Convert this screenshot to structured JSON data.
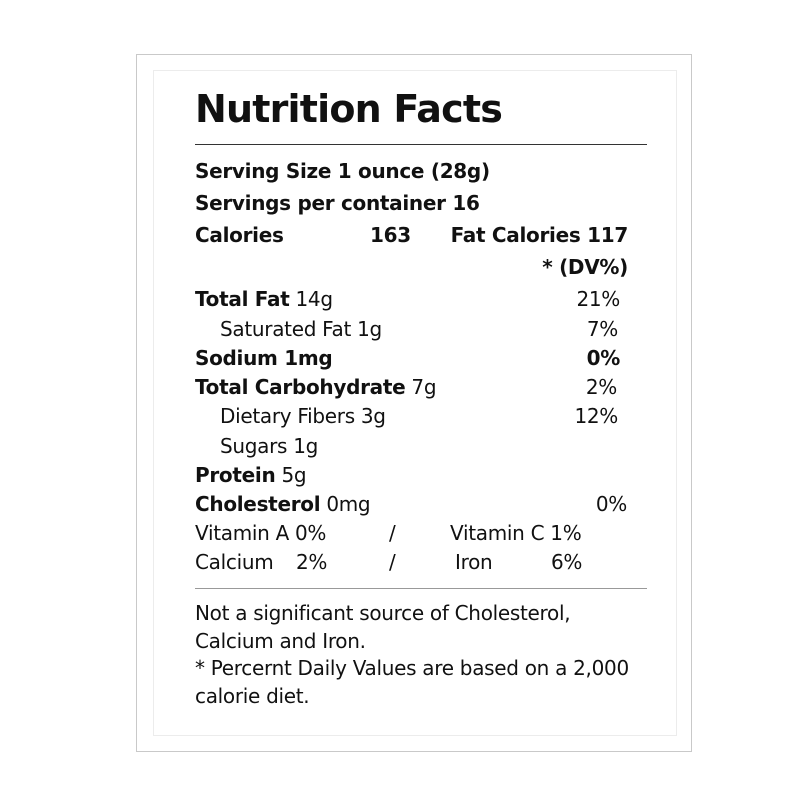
{
  "title": "Nutrition Facts",
  "serving_size": "Serving Size 1 ounce (28g)",
  "servings_per_container": "Servings per container 16",
  "calories": {
    "label": "Calories",
    "value": "163",
    "fat_calories": "Fat Calories 117"
  },
  "dv_header": "* (DV%)",
  "nutrients": {
    "total_fat": {
      "label": "Total Fat",
      "amount": " 14g",
      "dv": "21%"
    },
    "saturated_fat": {
      "label": "Saturated Fat 1g",
      "dv": "7%"
    },
    "sodium": {
      "label": "Sodium 1mg",
      "dv": "0%"
    },
    "total_carbohydrate": {
      "label": "Total Carbohydrate",
      "amount": " 7g",
      "dv": "2%"
    },
    "dietary_fibers": {
      "label": "Dietary Fibers 3g",
      "dv": "12%"
    },
    "sugars": {
      "label": "Sugars 1g"
    },
    "protein": {
      "label": "Protein",
      "amount": " 5g"
    },
    "cholesterol": {
      "label": "Cholesterol",
      "amount": " 0mg",
      "dv": "0%"
    }
  },
  "vitamins": {
    "vitamin_a": "Vitamin A 0%",
    "vitamin_c": "Vitamin C 1%",
    "calcium_label": "Calcium",
    "calcium_value": "2%",
    "iron_label": "Iron",
    "iron_value": "6%",
    "separator": "/"
  },
  "footnote": {
    "line1": "Not a significant source of Cholesterol,",
    "line2": "Calcium and Iron.",
    "line3": "* Percernt Daily Values are based on a 2,000",
    "line4": "calorie diet."
  }
}
